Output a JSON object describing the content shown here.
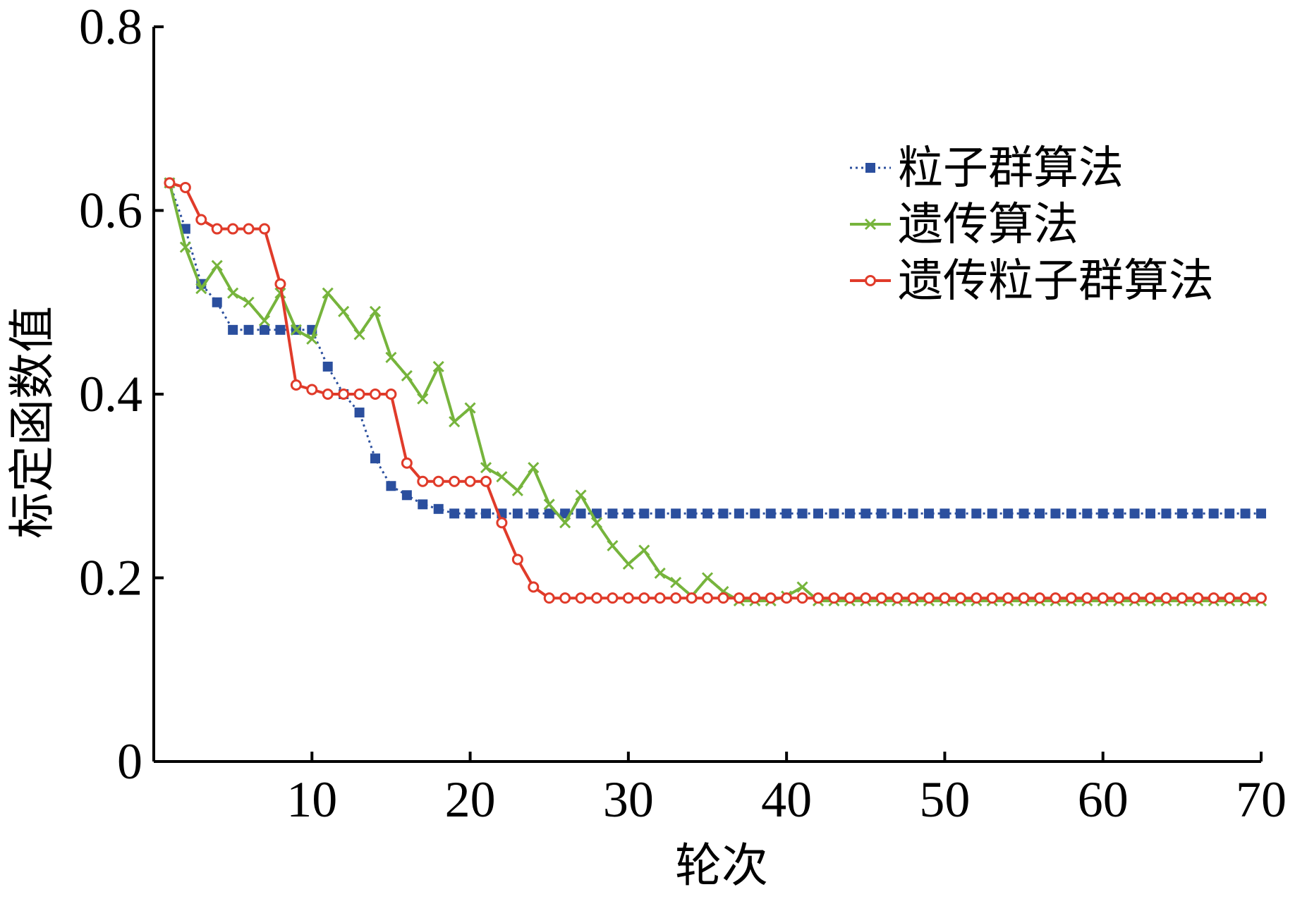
{
  "chart_data": {
    "type": "line",
    "xlabel": "轮次",
    "ylabel": "标定函数值",
    "xlim": [
      0,
      70
    ],
    "ylim": [
      0,
      0.8
    ],
    "xticks": [
      10,
      20,
      30,
      40,
      50,
      60,
      70
    ],
    "yticks": [
      0,
      0.2,
      0.4,
      0.6,
      0.8
    ],
    "ytick_labels": [
      "0",
      "0.2",
      "0.4",
      "0.6",
      "0.8"
    ],
    "x_start": 1,
    "grid": false,
    "legend_position": "top-right",
    "series": [
      {
        "name": "粒子群算法",
        "color": "#2b4f9e",
        "marker": "square",
        "line_style": "dotted",
        "values": [
          0.63,
          0.58,
          0.52,
          0.5,
          0.47,
          0.47,
          0.47,
          0.47,
          0.47,
          0.47,
          0.43,
          0.4,
          0.38,
          0.33,
          0.3,
          0.29,
          0.28,
          0.275,
          0.27,
          0.27,
          0.27,
          0.27,
          0.27,
          0.27,
          0.27,
          0.27,
          0.27,
          0.27,
          0.27,
          0.27,
          0.27,
          0.27,
          0.27,
          0.27,
          0.27,
          0.27,
          0.27,
          0.27,
          0.27,
          0.27,
          0.27,
          0.27,
          0.27,
          0.27,
          0.27,
          0.27,
          0.27,
          0.27,
          0.27,
          0.27,
          0.27,
          0.27,
          0.27,
          0.27,
          0.27,
          0.27,
          0.27,
          0.27,
          0.27,
          0.27,
          0.27,
          0.27,
          0.27,
          0.27,
          0.27,
          0.27,
          0.27,
          0.27,
          0.27,
          0.27
        ]
      },
      {
        "name": "遗传算法",
        "color": "#76b43c",
        "marker": "x",
        "line_style": "solid",
        "values": [
          0.63,
          0.56,
          0.515,
          0.54,
          0.51,
          0.5,
          0.48,
          0.51,
          0.47,
          0.46,
          0.51,
          0.49,
          0.465,
          0.49,
          0.44,
          0.42,
          0.395,
          0.43,
          0.37,
          0.385,
          0.32,
          0.31,
          0.295,
          0.32,
          0.28,
          0.26,
          0.29,
          0.26,
          0.235,
          0.215,
          0.23,
          0.205,
          0.195,
          0.18,
          0.2,
          0.185,
          0.175,
          0.175,
          0.175,
          0.18,
          0.19,
          0.175,
          0.175,
          0.175,
          0.175,
          0.175,
          0.175,
          0.175,
          0.175,
          0.175,
          0.175,
          0.175,
          0.175,
          0.175,
          0.175,
          0.175,
          0.175,
          0.175,
          0.175,
          0.175,
          0.175,
          0.175,
          0.175,
          0.175,
          0.175,
          0.175,
          0.175,
          0.175,
          0.175,
          0.175
        ]
      },
      {
        "name": "遗传粒子群算法",
        "color": "#e03b2a",
        "marker": "circle",
        "line_style": "solid",
        "values": [
          0.63,
          0.625,
          0.59,
          0.58,
          0.58,
          0.58,
          0.58,
          0.52,
          0.41,
          0.405,
          0.4,
          0.4,
          0.4,
          0.4,
          0.4,
          0.325,
          0.305,
          0.305,
          0.305,
          0.305,
          0.305,
          0.26,
          0.22,
          0.19,
          0.178,
          0.178,
          0.178,
          0.178,
          0.178,
          0.178,
          0.178,
          0.178,
          0.178,
          0.178,
          0.178,
          0.178,
          0.178,
          0.178,
          0.178,
          0.178,
          0.178,
          0.178,
          0.178,
          0.178,
          0.178,
          0.178,
          0.178,
          0.178,
          0.178,
          0.178,
          0.178,
          0.178,
          0.178,
          0.178,
          0.178,
          0.178,
          0.178,
          0.178,
          0.178,
          0.178,
          0.178,
          0.178,
          0.178,
          0.178,
          0.178,
          0.178,
          0.178,
          0.178,
          0.178,
          0.178
        ]
      }
    ]
  }
}
